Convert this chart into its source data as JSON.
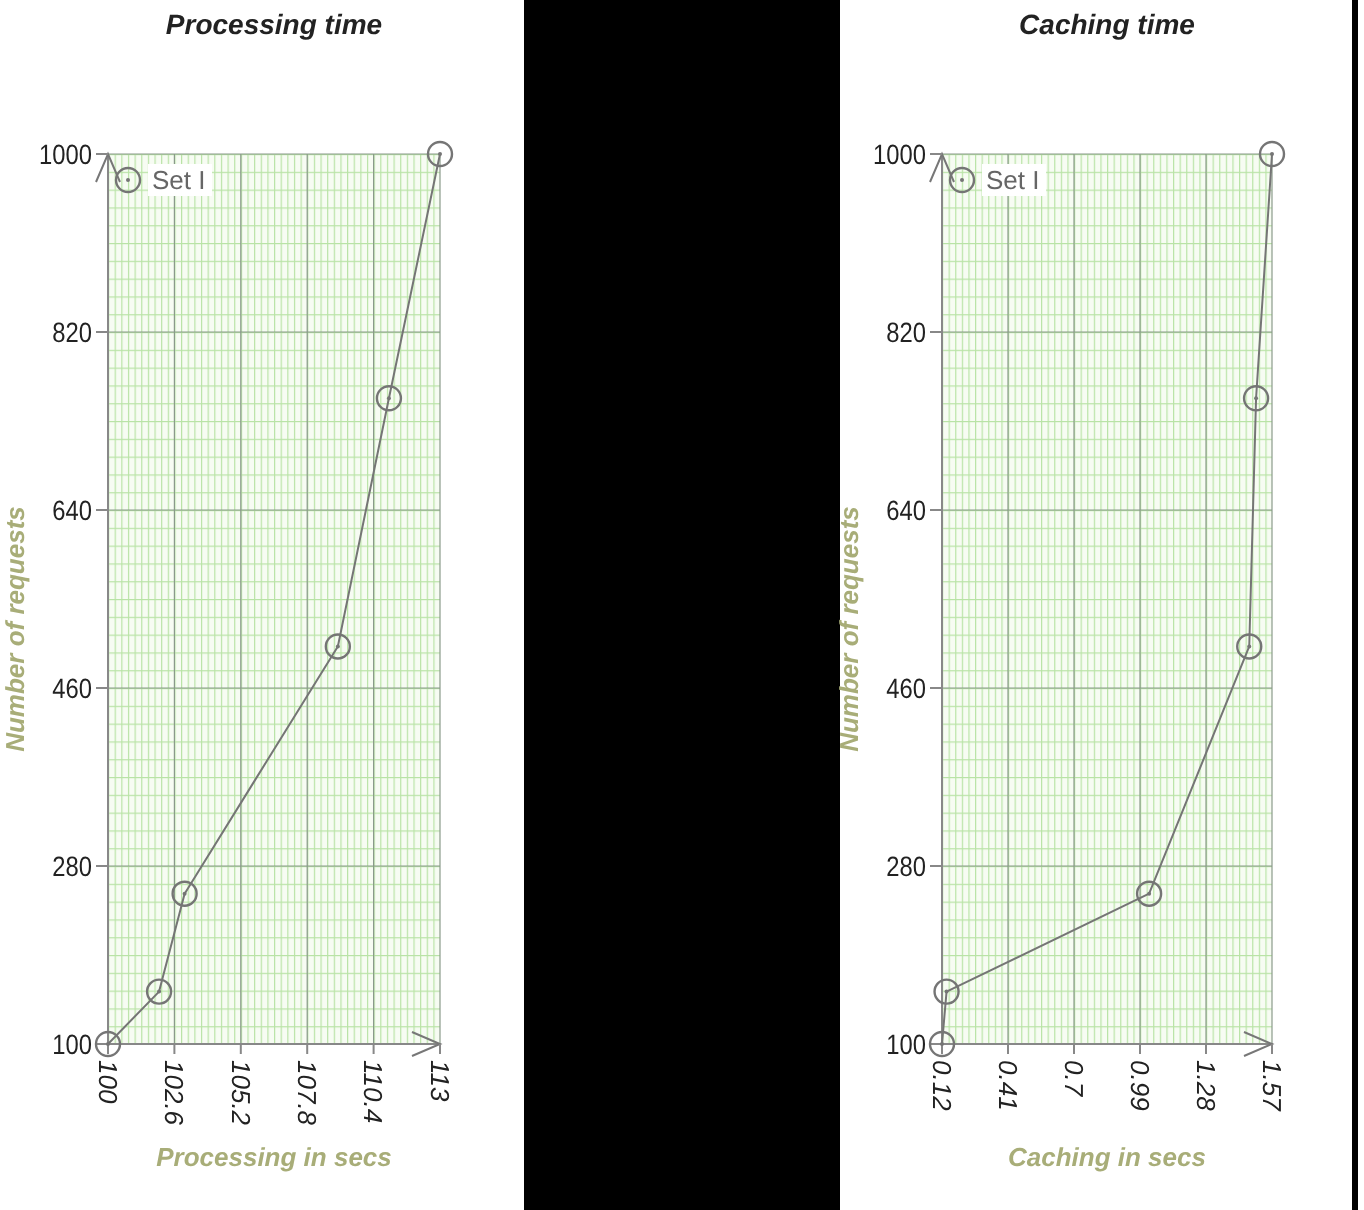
{
  "chart_data": [
    {
      "type": "line",
      "title": "Processing time",
      "xlabel": "Processing in secs",
      "ylabel": "Number of requests",
      "xlim": [
        100,
        113
      ],
      "xticks": [
        100,
        102.6,
        105.2,
        107.8,
        110.4,
        113
      ],
      "ylim": [
        100,
        1000
      ],
      "yticks": [
        100,
        280,
        460,
        640,
        820,
        1000
      ],
      "grid": true,
      "legend": "top left",
      "marker": "circle",
      "series": [
        {
          "name": "Set I",
          "color": "#757575",
          "x": [
            100,
            102,
            103,
            109,
            111,
            113
          ],
          "values": [
            100,
            153,
            252,
            502,
            753,
            1000
          ]
        }
      ]
    },
    {
      "type": "line",
      "title": "Caching time",
      "xlabel": "Caching in secs",
      "ylabel": "Number of requests",
      "xlim": [
        0.12,
        1.57
      ],
      "xticks": [
        0.12,
        0.41,
        0.7,
        0.99,
        1.28,
        1.57
      ],
      "ylim": [
        100,
        1000
      ],
      "yticks": [
        100,
        280,
        460,
        640,
        820,
        1000
      ],
      "grid": true,
      "legend": "top left",
      "marker": "circle",
      "series": [
        {
          "name": "Set I",
          "color": "#757575",
          "x": [
            0.12,
            0.14,
            1.03,
            1.47,
            1.5,
            1.57
          ],
          "values": [
            100,
            153,
            252,
            502,
            753,
            1000
          ]
        }
      ]
    }
  ]
}
